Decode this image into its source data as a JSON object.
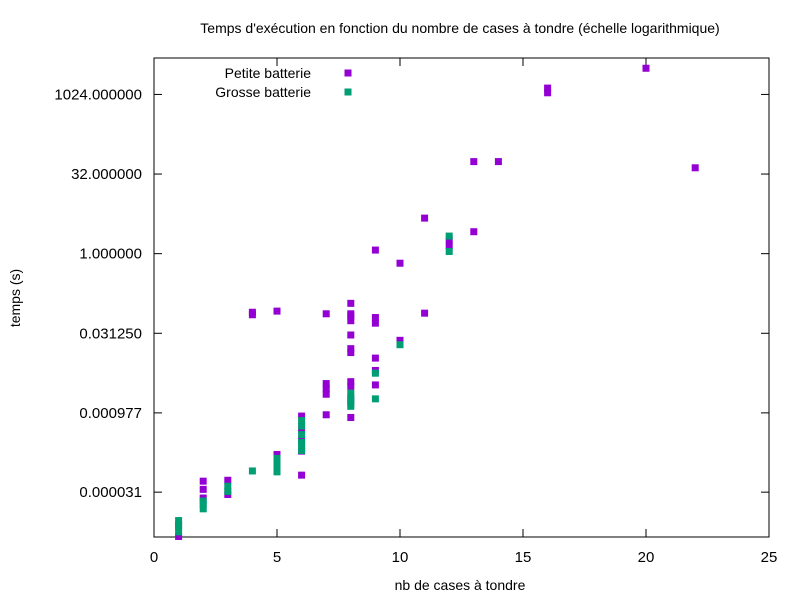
{
  "chart_data": {
    "type": "scatter",
    "title": "Temps d'exécution en fonction du nombre de cases à tondre (échelle logarithmique)",
    "xlabel": "nb de cases à tondre",
    "ylabel": "temps (s)",
    "xlim": [
      0,
      25
    ],
    "ylim": [
      4.4e-06,
      5000
    ],
    "y_scale": "log2",
    "x_ticks": [
      0,
      5,
      10,
      15,
      20,
      25
    ],
    "x_tick_labels": [
      "0",
      "5",
      "10",
      "15",
      "20",
      "25"
    ],
    "y_ticks": [
      3.1e-05,
      0.000977,
      0.03125,
      1.0,
      32.0,
      1024.0
    ],
    "y_tick_labels": [
      "0.000031",
      "0.000977",
      "0.031250",
      "1.000000",
      "32.000000",
      "1024.000000"
    ],
    "grid": false,
    "legend_position": "top-left",
    "series": [
      {
        "name": "Petite batterie",
        "color": "#9400d3",
        "points": [
          [
            1,
            4.5e-06
          ],
          [
            1,
            7.5e-06
          ],
          [
            2,
            2.4e-05
          ],
          [
            2,
            3.5e-05
          ],
          [
            2,
            5e-05
          ],
          [
            3,
            2.8e-05
          ],
          [
            3,
            5.2e-05
          ],
          [
            4,
            0.07
          ],
          [
            4,
            0.078
          ],
          [
            5,
            0.000105
          ],
          [
            5,
            0.00016
          ],
          [
            5,
            0.082
          ],
          [
            6,
            6.5e-05
          ],
          [
            6,
            0.000185
          ],
          [
            6,
            0.00031
          ],
          [
            6,
            0.00048
          ],
          [
            6,
            0.00085
          ],
          [
            7,
            0.0009
          ],
          [
            7,
            0.0022
          ],
          [
            7,
            0.0028
          ],
          [
            7,
            0.0035
          ],
          [
            7,
            0.073
          ],
          [
            8,
            0.0008
          ],
          [
            8,
            0.0017
          ],
          [
            8,
            0.0031
          ],
          [
            8,
            0.0038
          ],
          [
            8,
            0.0135
          ],
          [
            8,
            0.016
          ],
          [
            8,
            0.029
          ],
          [
            8,
            0.054
          ],
          [
            8,
            0.066
          ],
          [
            8,
            0.073
          ],
          [
            8,
            0.115
          ],
          [
            9,
            0.0033
          ],
          [
            9,
            0.0062
          ],
          [
            9,
            0.0106
          ],
          [
            9,
            0.0485
          ],
          [
            9,
            0.062
          ],
          [
            9,
            1.17
          ],
          [
            10,
            0.023
          ],
          [
            10,
            0.66
          ],
          [
            11,
            0.075
          ],
          [
            11,
            4.7
          ],
          [
            12,
            1.4
          ],
          [
            12,
            1.8
          ],
          [
            13,
            2.6
          ],
          [
            13,
            55.0
          ],
          [
            14,
            55.0
          ],
          [
            16,
            1100.0
          ],
          [
            16,
            1350.0
          ],
          [
            20,
            3200.0
          ],
          [
            22,
            42.0
          ]
        ]
      },
      {
        "name": "Grosse batterie",
        "color": "#009e73",
        "points": [
          [
            1,
            5.5e-06
          ],
          [
            1,
            7e-06
          ],
          [
            1,
            9e-06
          ],
          [
            2,
            1.5e-05
          ],
          [
            2,
            1.8e-05
          ],
          [
            2,
            2.1e-05
          ],
          [
            3,
            3.2e-05
          ],
          [
            3,
            4e-05
          ],
          [
            4,
            7.8e-05
          ],
          [
            5,
            7.5e-05
          ],
          [
            5,
            9e-05
          ],
          [
            5,
            0.00012
          ],
          [
            5,
            0.000135
          ],
          [
            6,
            0.00019
          ],
          [
            6,
            0.00023
          ],
          [
            6,
            0.00027
          ],
          [
            6,
            0.00038
          ],
          [
            6,
            0.00055
          ],
          [
            6,
            0.0007
          ],
          [
            8,
            0.0013
          ],
          [
            8,
            0.0015
          ],
          [
            8,
            0.0019
          ],
          [
            8,
            0.0023
          ],
          [
            9,
            0.0018
          ],
          [
            9,
            0.0055
          ],
          [
            10,
            0.019
          ],
          [
            12,
            1.1
          ],
          [
            12,
            2.15
          ]
        ]
      }
    ]
  }
}
